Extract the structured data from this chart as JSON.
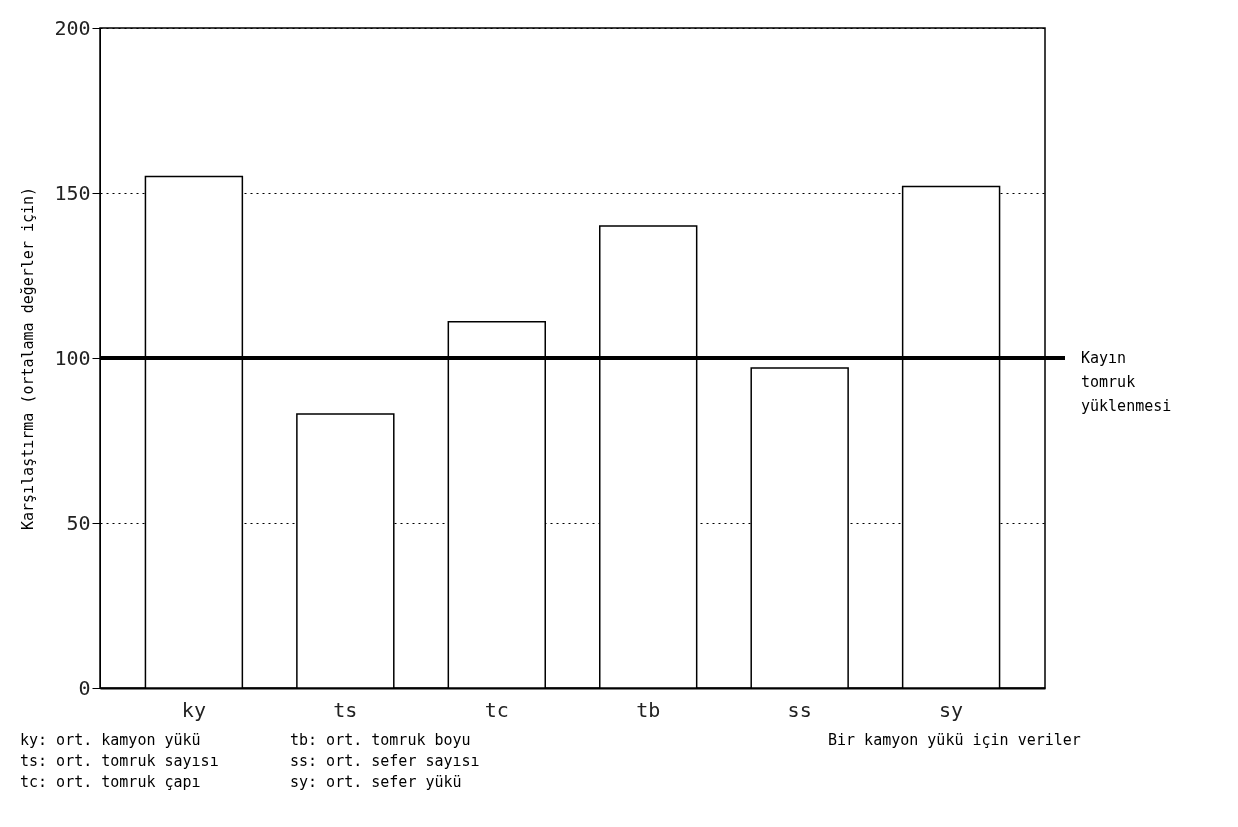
{
  "chart_data": {
    "type": "bar",
    "ylabel": "Karşılaştırma (ortalama değerler için)",
    "categories": [
      "ky",
      "ts",
      "tc",
      "tb",
      "ss",
      "sy"
    ],
    "values": [
      155,
      83,
      111,
      140,
      97,
      152
    ],
    "color": "#ffffff",
    "ylim": [
      0,
      200
    ],
    "yticks": [
      0,
      50,
      100,
      150,
      200
    ],
    "grid": "y",
    "ref_lines": [
      {
        "axis": "y",
        "value": 100,
        "label": "Kayın\ntomruk\nyüklenmesi",
        "color": "#000000"
      }
    ],
    "annotations": [
      "ky: ort. kamyon yükü",
      "ts: ort. tomruk sayısı",
      "tc: ort. tomruk çapı",
      "tb: ort. tomruk boyu",
      "ss: ort. sefer sayısı",
      "sy: ort. sefer yükü",
      "Bir kamyon yükü için veriler"
    ]
  }
}
